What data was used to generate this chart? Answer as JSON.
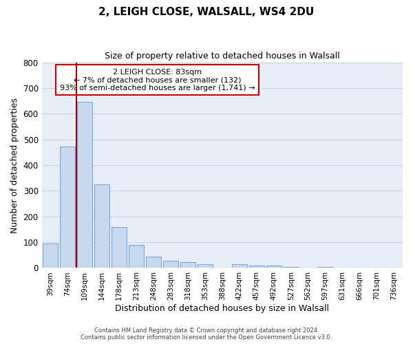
{
  "title": "2, LEIGH CLOSE, WALSALL, WS4 2DU",
  "subtitle": "Size of property relative to detached houses in Walsall",
  "xlabel": "Distribution of detached houses by size in Walsall",
  "ylabel": "Number of detached properties",
  "bar_labels": [
    "39sqm",
    "74sqm",
    "109sqm",
    "144sqm",
    "178sqm",
    "213sqm",
    "248sqm",
    "283sqm",
    "318sqm",
    "353sqm",
    "388sqm",
    "422sqm",
    "457sqm",
    "492sqm",
    "527sqm",
    "562sqm",
    "597sqm",
    "631sqm",
    "666sqm",
    "701sqm",
    "736sqm"
  ],
  "bar_values": [
    95,
    472,
    645,
    325,
    160,
    90,
    43,
    28,
    22,
    14,
    0,
    15,
    10,
    8,
    5,
    0,
    5,
    0,
    0,
    0,
    0
  ],
  "bar_color": "#c8d8ee",
  "bar_edge_color": "#7aaadd",
  "ylim": [
    0,
    800
  ],
  "yticks": [
    0,
    100,
    200,
    300,
    400,
    500,
    600,
    700,
    800
  ],
  "marker_line_color": "#aa0000",
  "annotation_box_color": "#ffffff",
  "annotation_border_color": "#cc0000",
  "annotation_title": "2 LEIGH CLOSE: 83sqm",
  "annotation_line1": "← 7% of detached houses are smaller (132)",
  "annotation_line2": "93% of semi-detached houses are larger (1,741) →",
  "footer_line1": "Contains HM Land Registry data © Crown copyright and database right 2024.",
  "footer_line2": "Contains public sector information licensed under the Open Government Licence v3.0.",
  "background_color": "#ffffff",
  "axes_bg_color": "#e8eef8",
  "grid_color": "#c8d4e8"
}
